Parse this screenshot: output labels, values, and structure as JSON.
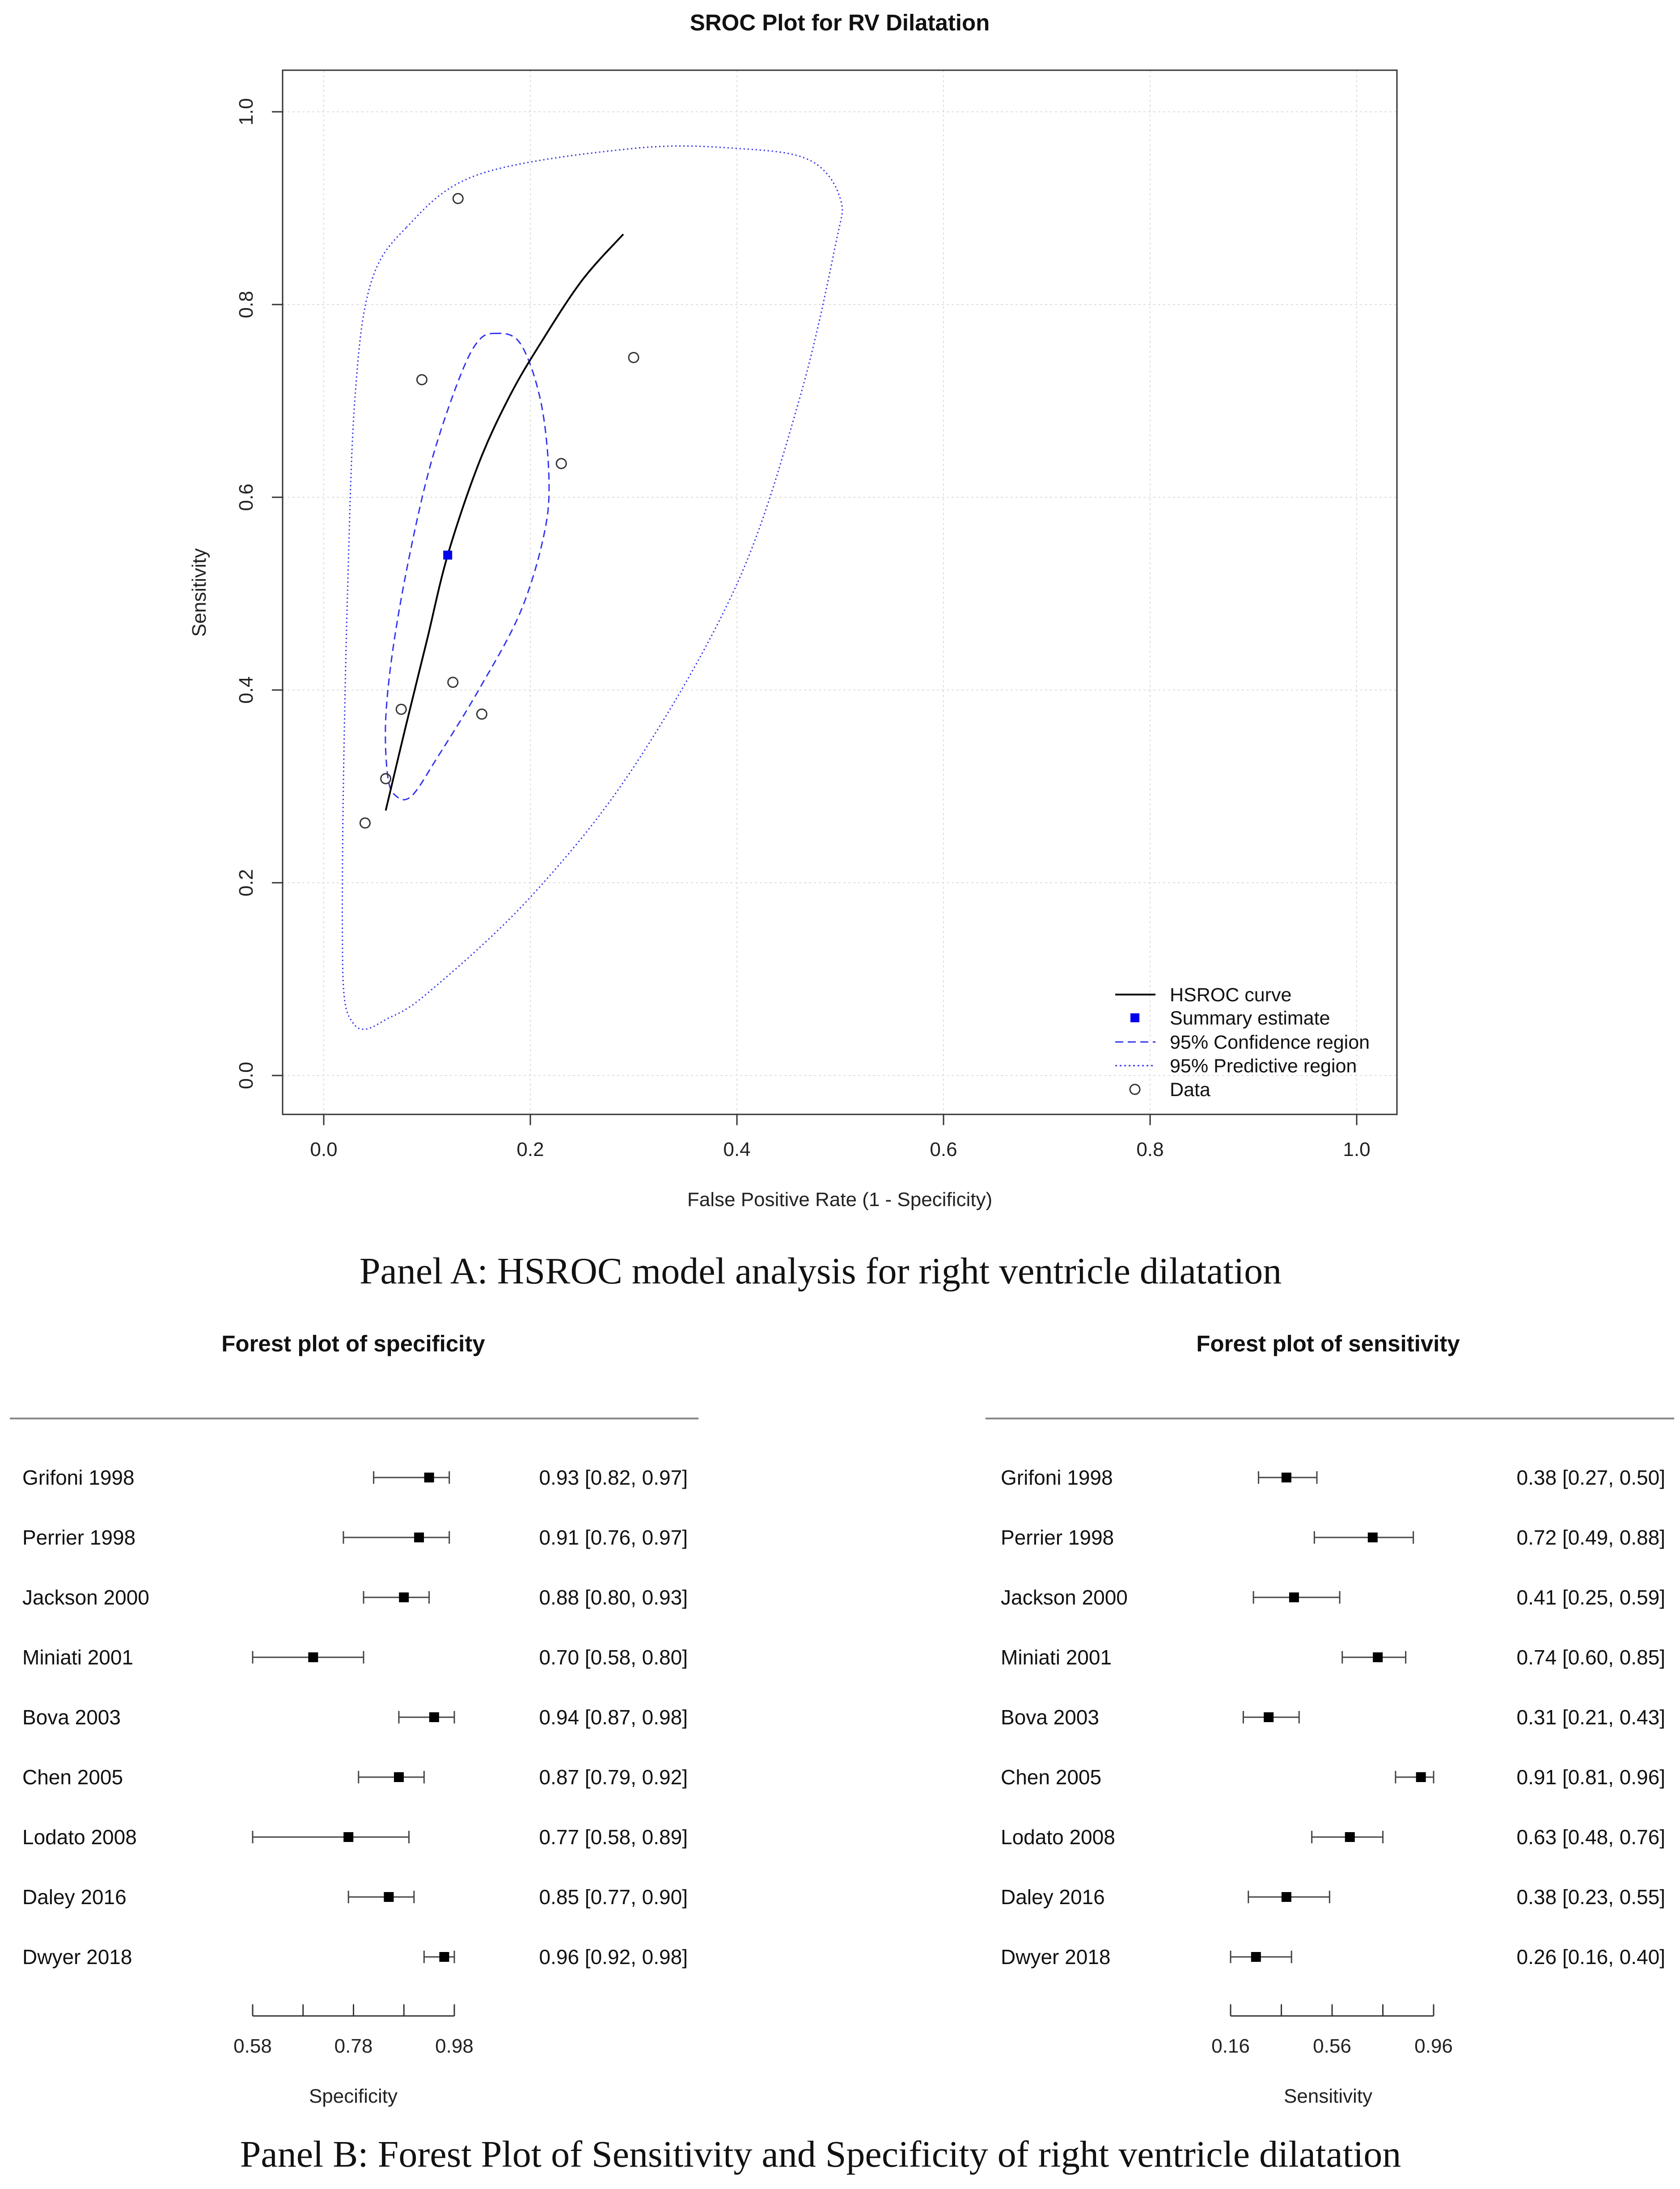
{
  "panel_a": {
    "caption": "Panel A: HSROC model analysis for right ventricle dilatation"
  },
  "panel_b": {
    "caption": "Panel B: Forest Plot of Sensitivity and Specificity of right ventricle dilatation"
  },
  "chart_data": [
    {
      "type": "scatter",
      "title": "SROC Plot for RV Dilatation",
      "xlabel": "False Positive Rate (1 - Specificity)",
      "ylabel": "Sensitivity",
      "xlim": [
        0,
        1
      ],
      "ylim": [
        0,
        1
      ],
      "x_ticks": [
        "0.0",
        "0.2",
        "0.4",
        "0.6",
        "0.8",
        "1.0"
      ],
      "y_ticks": [
        "0.0",
        "0.2",
        "0.4",
        "0.6",
        "0.8",
        "1.0"
      ],
      "grid": true,
      "legend_position": "bottom-right",
      "legend": [
        {
          "label": "HSROC curve",
          "style": "solid-line"
        },
        {
          "label": "Summary estimate",
          "style": "filled-square"
        },
        {
          "label": "95% Confidence region",
          "style": "dashed-line"
        },
        {
          "label": "95% Predictive region",
          "style": "dotted-line"
        },
        {
          "label": "Data",
          "style": "open-circle"
        }
      ],
      "colors": {
        "curve": "#000000",
        "summary": "#0000ee",
        "regions": "#3333ee",
        "data": "#333333"
      },
      "data_points": [
        {
          "x": 0.13,
          "y": 0.91
        },
        {
          "x": 0.3,
          "y": 0.745
        },
        {
          "x": 0.095,
          "y": 0.722
        },
        {
          "x": 0.23,
          "y": 0.635
        },
        {
          "x": 0.125,
          "y": 0.408
        },
        {
          "x": 0.075,
          "y": 0.38
        },
        {
          "x": 0.153,
          "y": 0.375
        },
        {
          "x": 0.06,
          "y": 0.308
        },
        {
          "x": 0.04,
          "y": 0.262
        }
      ],
      "summary_estimate": {
        "x": 0.12,
        "y": 0.54
      },
      "hsroc_curve": [
        [
          0.06,
          0.275
        ],
        [
          0.08,
          0.365
        ],
        [
          0.1,
          0.452
        ],
        [
          0.12,
          0.54
        ],
        [
          0.15,
          0.635
        ],
        [
          0.18,
          0.705
        ],
        [
          0.21,
          0.76
        ],
        [
          0.25,
          0.825
        ],
        [
          0.29,
          0.873
        ]
      ],
      "confidence_region": [
        [
          0.165,
          0.77
        ],
        [
          0.19,
          0.76
        ],
        [
          0.21,
          0.7
        ],
        [
          0.218,
          0.62
        ],
        [
          0.213,
          0.56
        ],
        [
          0.19,
          0.48
        ],
        [
          0.15,
          0.4
        ],
        [
          0.11,
          0.33
        ],
        [
          0.085,
          0.29
        ],
        [
          0.07,
          0.29
        ],
        [
          0.062,
          0.31
        ],
        [
          0.06,
          0.37
        ],
        [
          0.068,
          0.45
        ],
        [
          0.085,
          0.55
        ],
        [
          0.105,
          0.64
        ],
        [
          0.13,
          0.72
        ],
        [
          0.148,
          0.76
        ]
      ],
      "predictive_region": [
        [
          0.08,
          0.88
        ],
        [
          0.15,
          0.935
        ],
        [
          0.3,
          0.962
        ],
        [
          0.4,
          0.962
        ],
        [
          0.47,
          0.95
        ],
        [
          0.5,
          0.91
        ],
        [
          0.495,
          0.86
        ],
        [
          0.46,
          0.7
        ],
        [
          0.4,
          0.51
        ],
        [
          0.3,
          0.32
        ],
        [
          0.2,
          0.185
        ],
        [
          0.1,
          0.085
        ],
        [
          0.06,
          0.058
        ],
        [
          0.04,
          0.048
        ],
        [
          0.028,
          0.055
        ],
        [
          0.02,
          0.08
        ],
        [
          0.018,
          0.15
        ],
        [
          0.019,
          0.3
        ],
        [
          0.023,
          0.5
        ],
        [
          0.03,
          0.7
        ],
        [
          0.045,
          0.82
        ]
      ]
    },
    {
      "type": "forest",
      "title": "Forest plot of specificity",
      "xlabel": "Specificity",
      "axis_min": 0.58,
      "axis_max": 0.98,
      "ticks": [
        0.58,
        0.68,
        0.78,
        0.88,
        0.98
      ],
      "tick_labels": [
        "0.58",
        "0.78",
        "0.98"
      ],
      "tick_label_values": [
        0.58,
        0.78,
        0.98
      ],
      "rows": [
        {
          "study": "Grifoni 1998",
          "est": 0.93,
          "lo": 0.82,
          "hi": 0.97,
          "label": "0.93 [0.82, 0.97]"
        },
        {
          "study": "Perrier 1998",
          "est": 0.91,
          "lo": 0.76,
          "hi": 0.97,
          "label": "0.91 [0.76, 0.97]"
        },
        {
          "study": "Jackson 2000",
          "est": 0.88,
          "lo": 0.8,
          "hi": 0.93,
          "label": "0.88 [0.80, 0.93]"
        },
        {
          "study": "Miniati 2001",
          "est": 0.7,
          "lo": 0.58,
          "hi": 0.8,
          "label": "0.70 [0.58, 0.80]"
        },
        {
          "study": "Bova 2003",
          "est": 0.94,
          "lo": 0.87,
          "hi": 0.98,
          "label": "0.94 [0.87, 0.98]"
        },
        {
          "study": "Chen 2005",
          "est": 0.87,
          "lo": 0.79,
          "hi": 0.92,
          "label": "0.87 [0.79, 0.92]"
        },
        {
          "study": "Lodato 2008",
          "est": 0.77,
          "lo": 0.58,
          "hi": 0.89,
          "label": "0.77 [0.58, 0.89]"
        },
        {
          "study": "Daley 2016",
          "est": 0.85,
          "lo": 0.77,
          "hi": 0.9,
          "label": "0.85 [0.77, 0.90]"
        },
        {
          "study": "Dwyer 2018",
          "est": 0.96,
          "lo": 0.92,
          "hi": 0.98,
          "label": "0.96 [0.92, 0.98]"
        }
      ]
    },
    {
      "type": "forest",
      "title": "Forest plot of sensitivity",
      "xlabel": "Sensitivity",
      "axis_min": 0.16,
      "axis_max": 0.96,
      "ticks": [
        0.16,
        0.36,
        0.56,
        0.76,
        0.96
      ],
      "tick_labels": [
        "0.16",
        "0.56",
        "0.96"
      ],
      "tick_label_values": [
        0.16,
        0.56,
        0.96
      ],
      "rows": [
        {
          "study": "Grifoni 1998",
          "est": 0.38,
          "lo": 0.27,
          "hi": 0.5,
          "label": "0.38 [0.27, 0.50]"
        },
        {
          "study": "Perrier 1998",
          "est": 0.72,
          "lo": 0.49,
          "hi": 0.88,
          "label": "0.72 [0.49, 0.88]"
        },
        {
          "study": "Jackson 2000",
          "est": 0.41,
          "lo": 0.25,
          "hi": 0.59,
          "label": "0.41 [0.25, 0.59]"
        },
        {
          "study": "Miniati 2001",
          "est": 0.74,
          "lo": 0.6,
          "hi": 0.85,
          "label": "0.74 [0.60, 0.85]"
        },
        {
          "study": "Bova 2003",
          "est": 0.31,
          "lo": 0.21,
          "hi": 0.43,
          "label": "0.31 [0.21, 0.43]"
        },
        {
          "study": "Chen 2005",
          "est": 0.91,
          "lo": 0.81,
          "hi": 0.96,
          "label": "0.91 [0.81, 0.96]"
        },
        {
          "study": "Lodato 2008",
          "est": 0.63,
          "lo": 0.48,
          "hi": 0.76,
          "label": "0.63 [0.48, 0.76]"
        },
        {
          "study": "Daley 2016",
          "est": 0.38,
          "lo": 0.23,
          "hi": 0.55,
          "label": "0.38 [0.23, 0.55]"
        },
        {
          "study": "Dwyer 2018",
          "est": 0.26,
          "lo": 0.16,
          "hi": 0.4,
          "label": "0.26 [0.16, 0.40]"
        }
      ]
    }
  ]
}
